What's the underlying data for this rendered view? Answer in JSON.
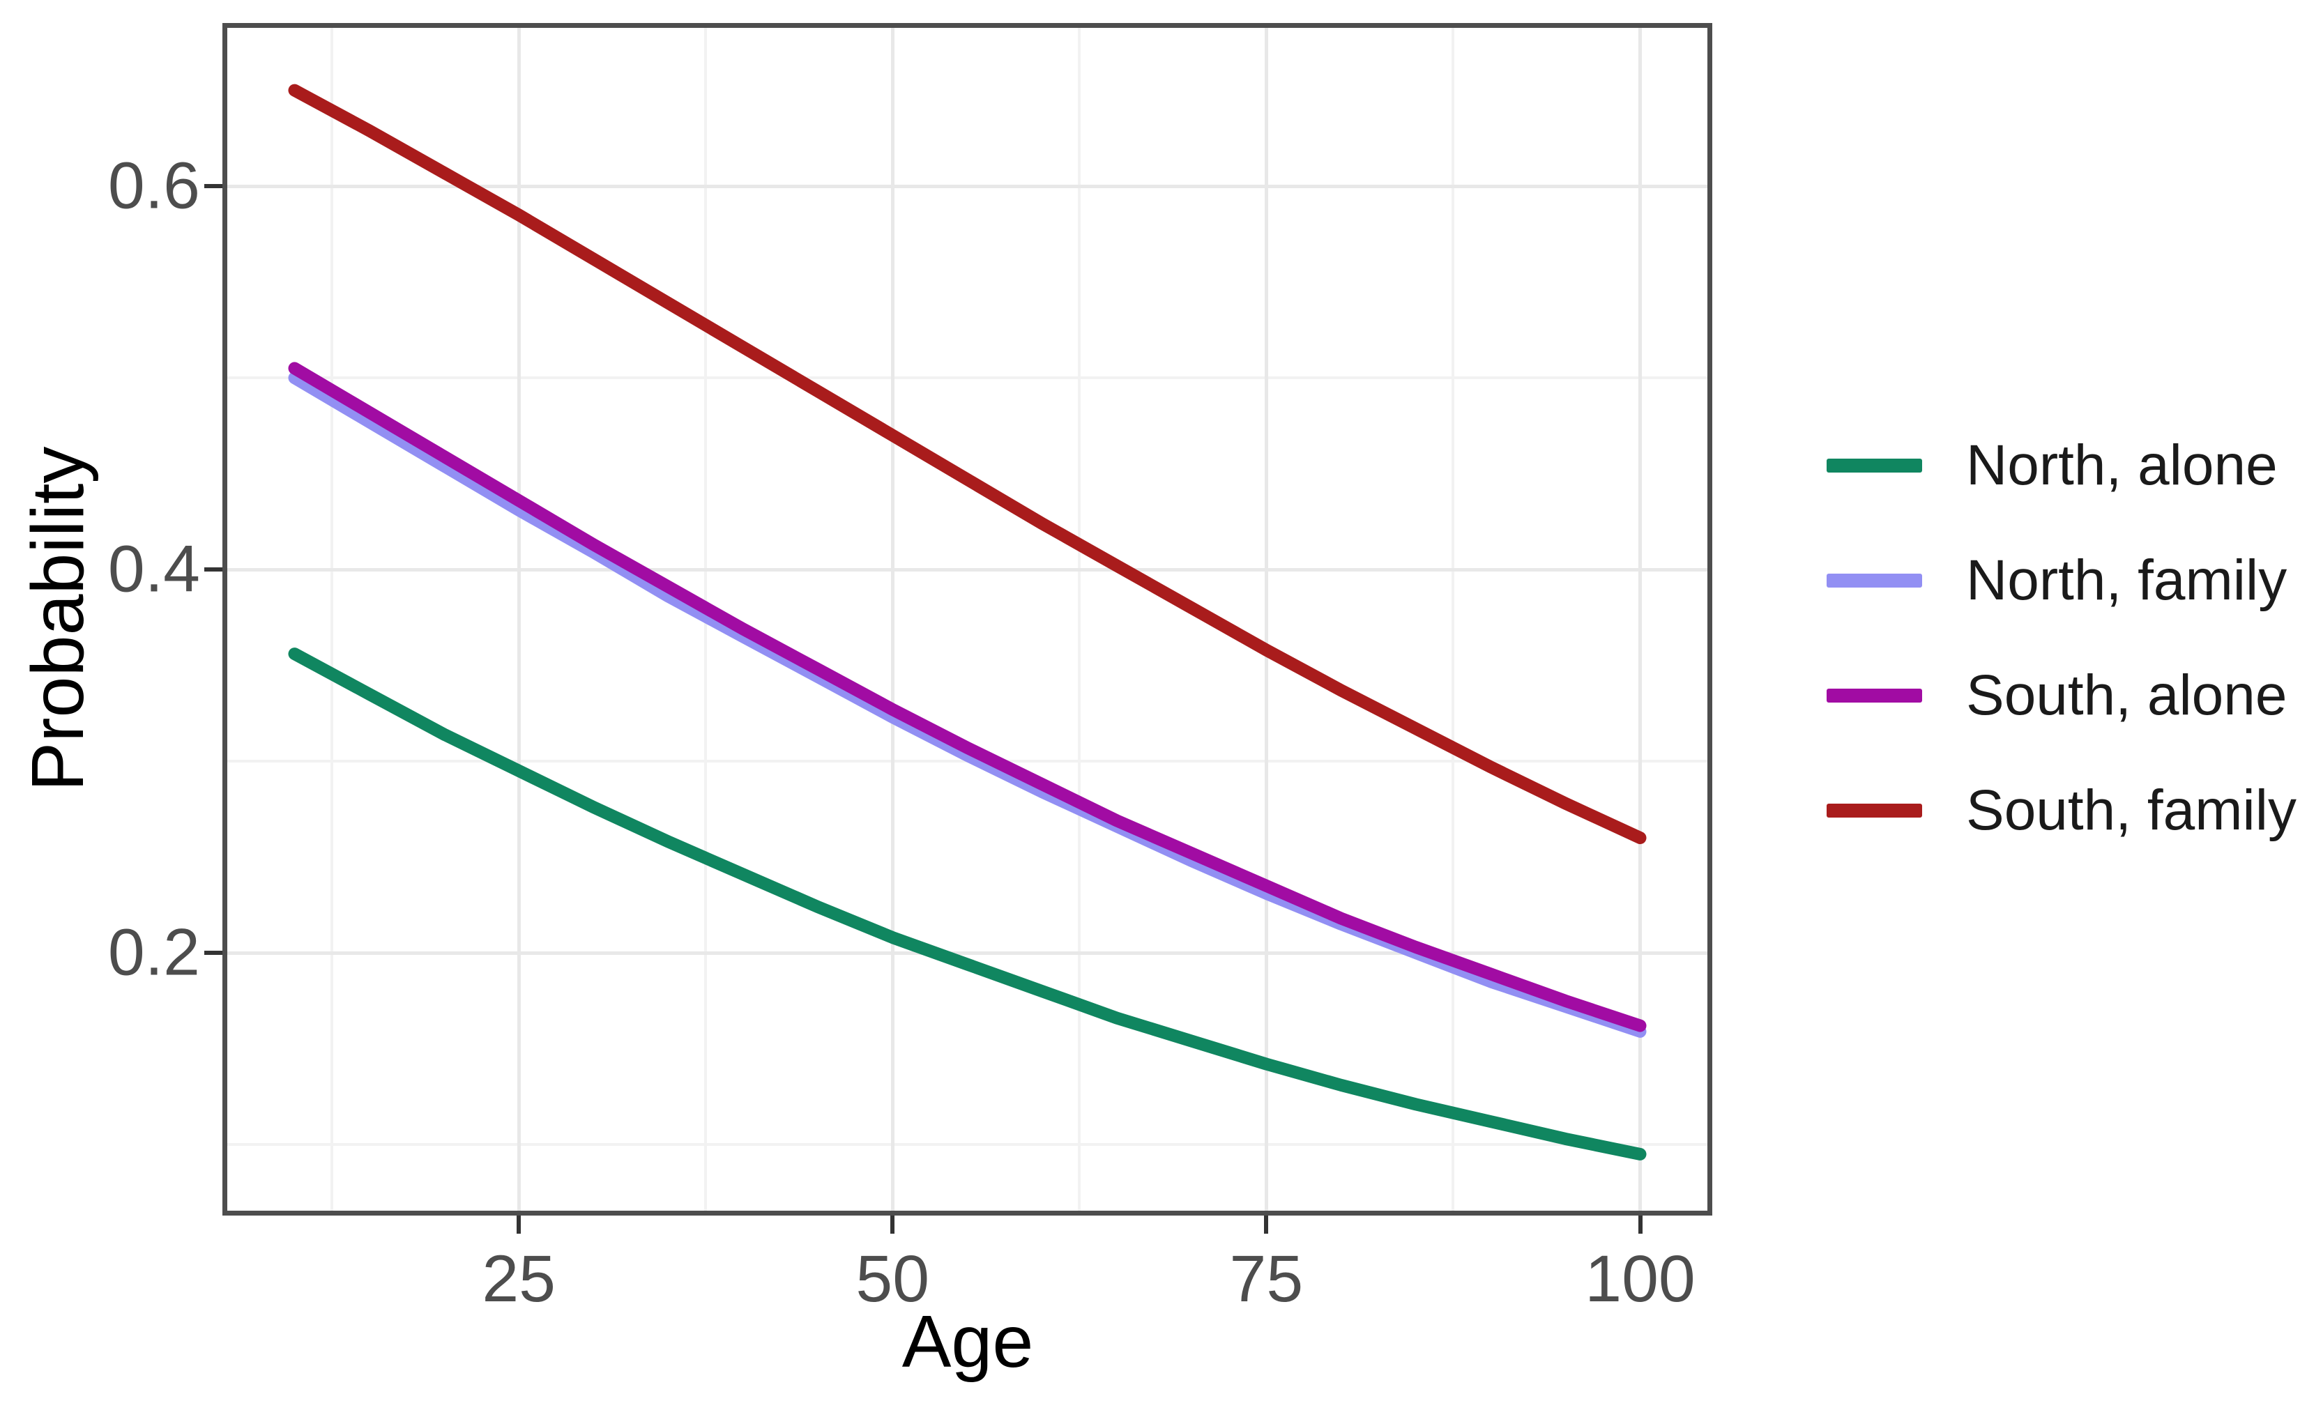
{
  "axes": {
    "x": {
      "title": "Age",
      "tick_labels": [
        "25",
        "50",
        "75",
        "100"
      ]
    },
    "y": {
      "title": "Probability",
      "tick_labels": [
        "0.6",
        "0.4",
        "0.2"
      ]
    }
  },
  "legend": {
    "items": [
      {
        "label": "North, alone",
        "color": "#108660"
      },
      {
        "label": "North, family",
        "color": "#928FF3"
      },
      {
        "label": "South, alone",
        "color": "#A10CA3"
      },
      {
        "label": "South, family",
        "color": "#A91C1C"
      }
    ]
  },
  "chart_data": {
    "type": "line",
    "title": "",
    "xlabel": "Age",
    "ylabel": "Probability",
    "x": [
      10,
      15,
      20,
      25,
      30,
      35,
      40,
      45,
      50,
      55,
      60,
      65,
      70,
      75,
      80,
      85,
      90,
      95,
      100
    ],
    "series": [
      {
        "name": "North, alone",
        "color": "#108660",
        "values": [
          0.356,
          0.335,
          0.314,
          0.295,
          0.276,
          0.258,
          0.241,
          0.224,
          0.208,
          0.194,
          0.18,
          0.166,
          0.154,
          0.142,
          0.131,
          0.121,
          0.112,
          0.103,
          0.095
        ]
      },
      {
        "name": "North, family",
        "color": "#928FF3",
        "values": [
          0.5,
          0.477,
          0.454,
          0.431,
          0.409,
          0.386,
          0.365,
          0.344,
          0.323,
          0.303,
          0.284,
          0.266,
          0.248,
          0.231,
          0.215,
          0.2,
          0.185,
          0.172,
          0.159
        ]
      },
      {
        "name": "South, alone",
        "color": "#A10CA3",
        "values": [
          0.505,
          0.482,
          0.459,
          0.436,
          0.413,
          0.391,
          0.369,
          0.348,
          0.327,
          0.307,
          0.288,
          0.269,
          0.252,
          0.235,
          0.218,
          0.203,
          0.189,
          0.175,
          0.162
        ]
      },
      {
        "name": "South, family",
        "color": "#A91C1C",
        "values": [
          0.65,
          0.629,
          0.607,
          0.585,
          0.562,
          0.539,
          0.516,
          0.493,
          0.47,
          0.447,
          0.424,
          0.402,
          0.38,
          0.358,
          0.337,
          0.317,
          0.297,
          0.278,
          0.26
        ]
      }
    ],
    "xlim": [
      5.5,
      104.5
    ],
    "ylim": [
      0.0655,
      0.6826
    ],
    "x_major_breaks": [
      25,
      50,
      75,
      100
    ],
    "x_minor_breaks": [
      12.5,
      37.5,
      62.5,
      87.5
    ],
    "y_major_breaks": [
      0.2,
      0.4,
      0.6
    ],
    "y_minor_breaks": [
      0.1,
      0.3,
      0.5
    ],
    "grid": true,
    "legend_position": "right"
  },
  "style": {
    "background": "#FFFFFF",
    "grid_major_color": "#E8E8E8",
    "grid_minor_color": "#F2F2F2",
    "panel_border_color": "#4D4D4D",
    "tick_color": "#333333",
    "tick_label_color": "#4D4D4D",
    "axis_title_color": "#000000",
    "legend_text_color": "#1A1A1A",
    "line_width": 18
  }
}
